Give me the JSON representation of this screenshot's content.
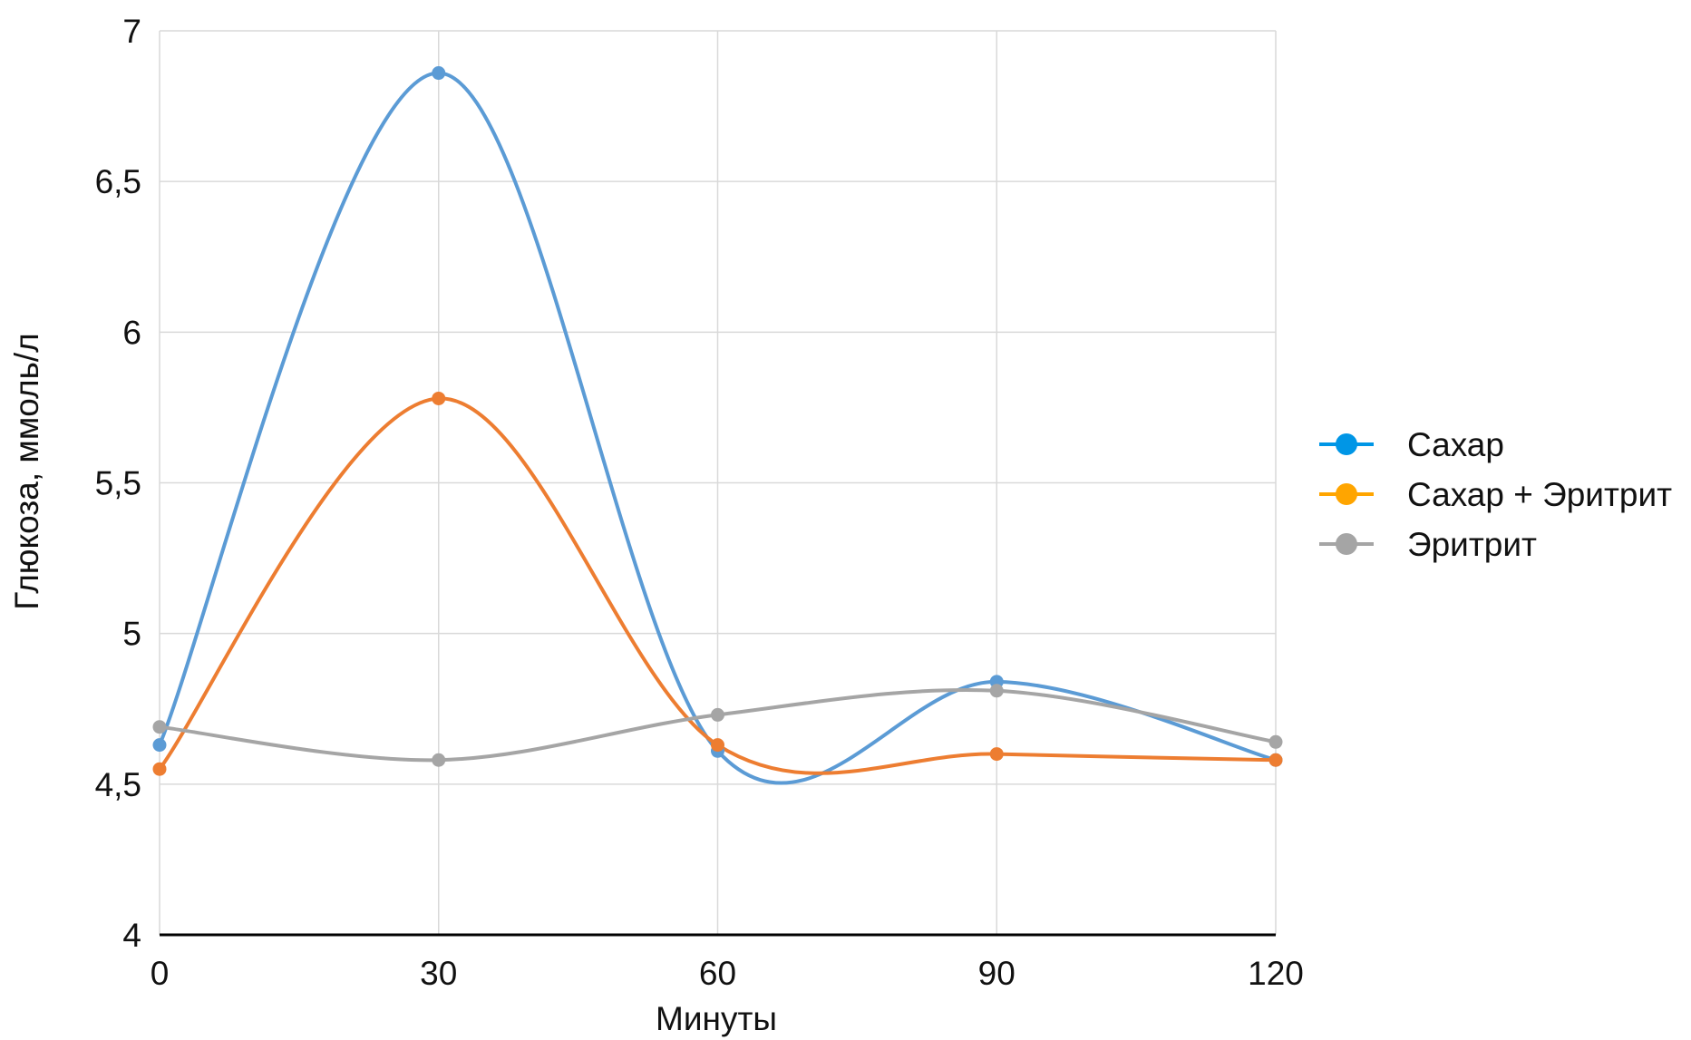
{
  "chart_data": {
    "type": "line",
    "title": "",
    "xlabel": "Минуты",
    "ylabel": "Глюкоза, ммоль/л",
    "x": [
      0,
      30,
      60,
      90,
      120
    ],
    "xticks": [
      "0",
      "30",
      "60",
      "90",
      "120"
    ],
    "yticks": [
      "4",
      "4,5",
      "5",
      "5,5",
      "6",
      "6,5",
      "7"
    ],
    "ylim": [
      4,
      7
    ],
    "xlim": [
      0,
      120
    ],
    "grid": true,
    "smooth": true,
    "legend_position": "right",
    "series": [
      {
        "name": "Сахар",
        "values": [
          4.63,
          6.86,
          4.61,
          4.84,
          4.58
        ],
        "color": "#5B9BD5",
        "marker_color": "#5B9BD5",
        "legend_color": "#0096E6"
      },
      {
        "name": "Сахар + Эритрит",
        "values": [
          4.55,
          5.78,
          4.63,
          4.6,
          4.58
        ],
        "color": "#ED7D31",
        "marker_color": "#ED7D31",
        "legend_color": "#FFA500"
      },
      {
        "name": "Эритрит",
        "values": [
          4.69,
          4.58,
          4.73,
          4.81,
          4.64
        ],
        "color": "#A5A5A5",
        "marker_color": "#A5A5A5",
        "legend_color": "#A5A5A5"
      }
    ]
  }
}
